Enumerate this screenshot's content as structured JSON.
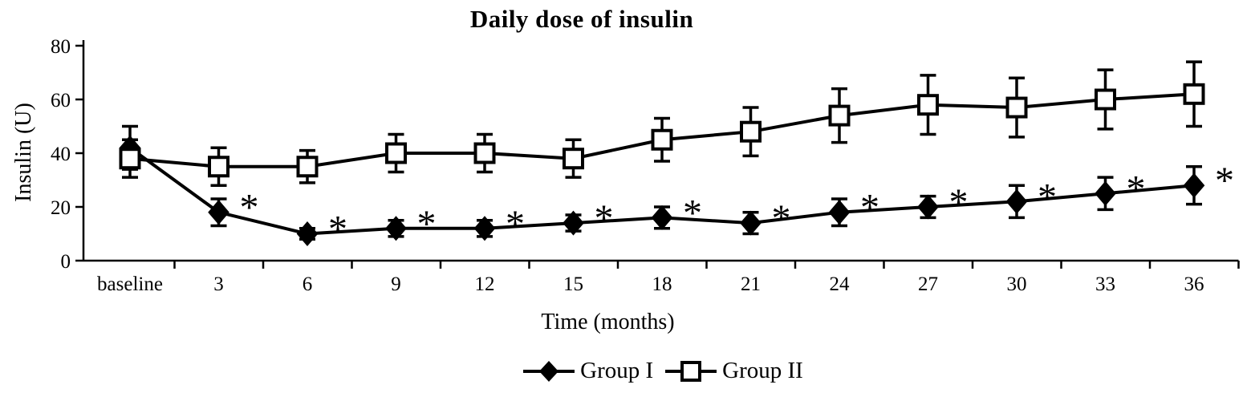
{
  "chart_data": {
    "type": "line",
    "title": "Daily dose of insulin",
    "xlabel": "Time (months)",
    "ylabel": "Insulin (U)",
    "categories": [
      "baseline",
      "3",
      "6",
      "9",
      "12",
      "15",
      "18",
      "21",
      "24",
      "27",
      "30",
      "33",
      "36"
    ],
    "y_ticks": [
      0,
      20,
      40,
      60,
      80
    ],
    "ylim": [
      0,
      80
    ],
    "grid": false,
    "legend_position": "bottom",
    "annotation_symbol": "*",
    "line_color": "#000000",
    "background_color": "#ffffff",
    "series": [
      {
        "name": "Group I",
        "marker": "diamond",
        "marker_fill": "#000000",
        "values": [
          42,
          18,
          10,
          12,
          12,
          14,
          16,
          14,
          18,
          20,
          22,
          25,
          28
        ],
        "errors": [
          8,
          5,
          2,
          3,
          3,
          3,
          4,
          4,
          5,
          4,
          6,
          6,
          7
        ],
        "significance": [
          false,
          true,
          true,
          true,
          true,
          true,
          true,
          true,
          true,
          true,
          true,
          true,
          true
        ]
      },
      {
        "name": "Group II",
        "marker": "square",
        "marker_fill": "#ffffff",
        "values": [
          38,
          35,
          35,
          40,
          40,
          38,
          45,
          48,
          54,
          58,
          57,
          60,
          62
        ],
        "errors": [
          7,
          7,
          6,
          7,
          7,
          7,
          8,
          9,
          10,
          11,
          11,
          11,
          12
        ],
        "significance": [
          false,
          false,
          false,
          false,
          false,
          false,
          false,
          false,
          false,
          false,
          false,
          false,
          false
        ]
      }
    ]
  }
}
